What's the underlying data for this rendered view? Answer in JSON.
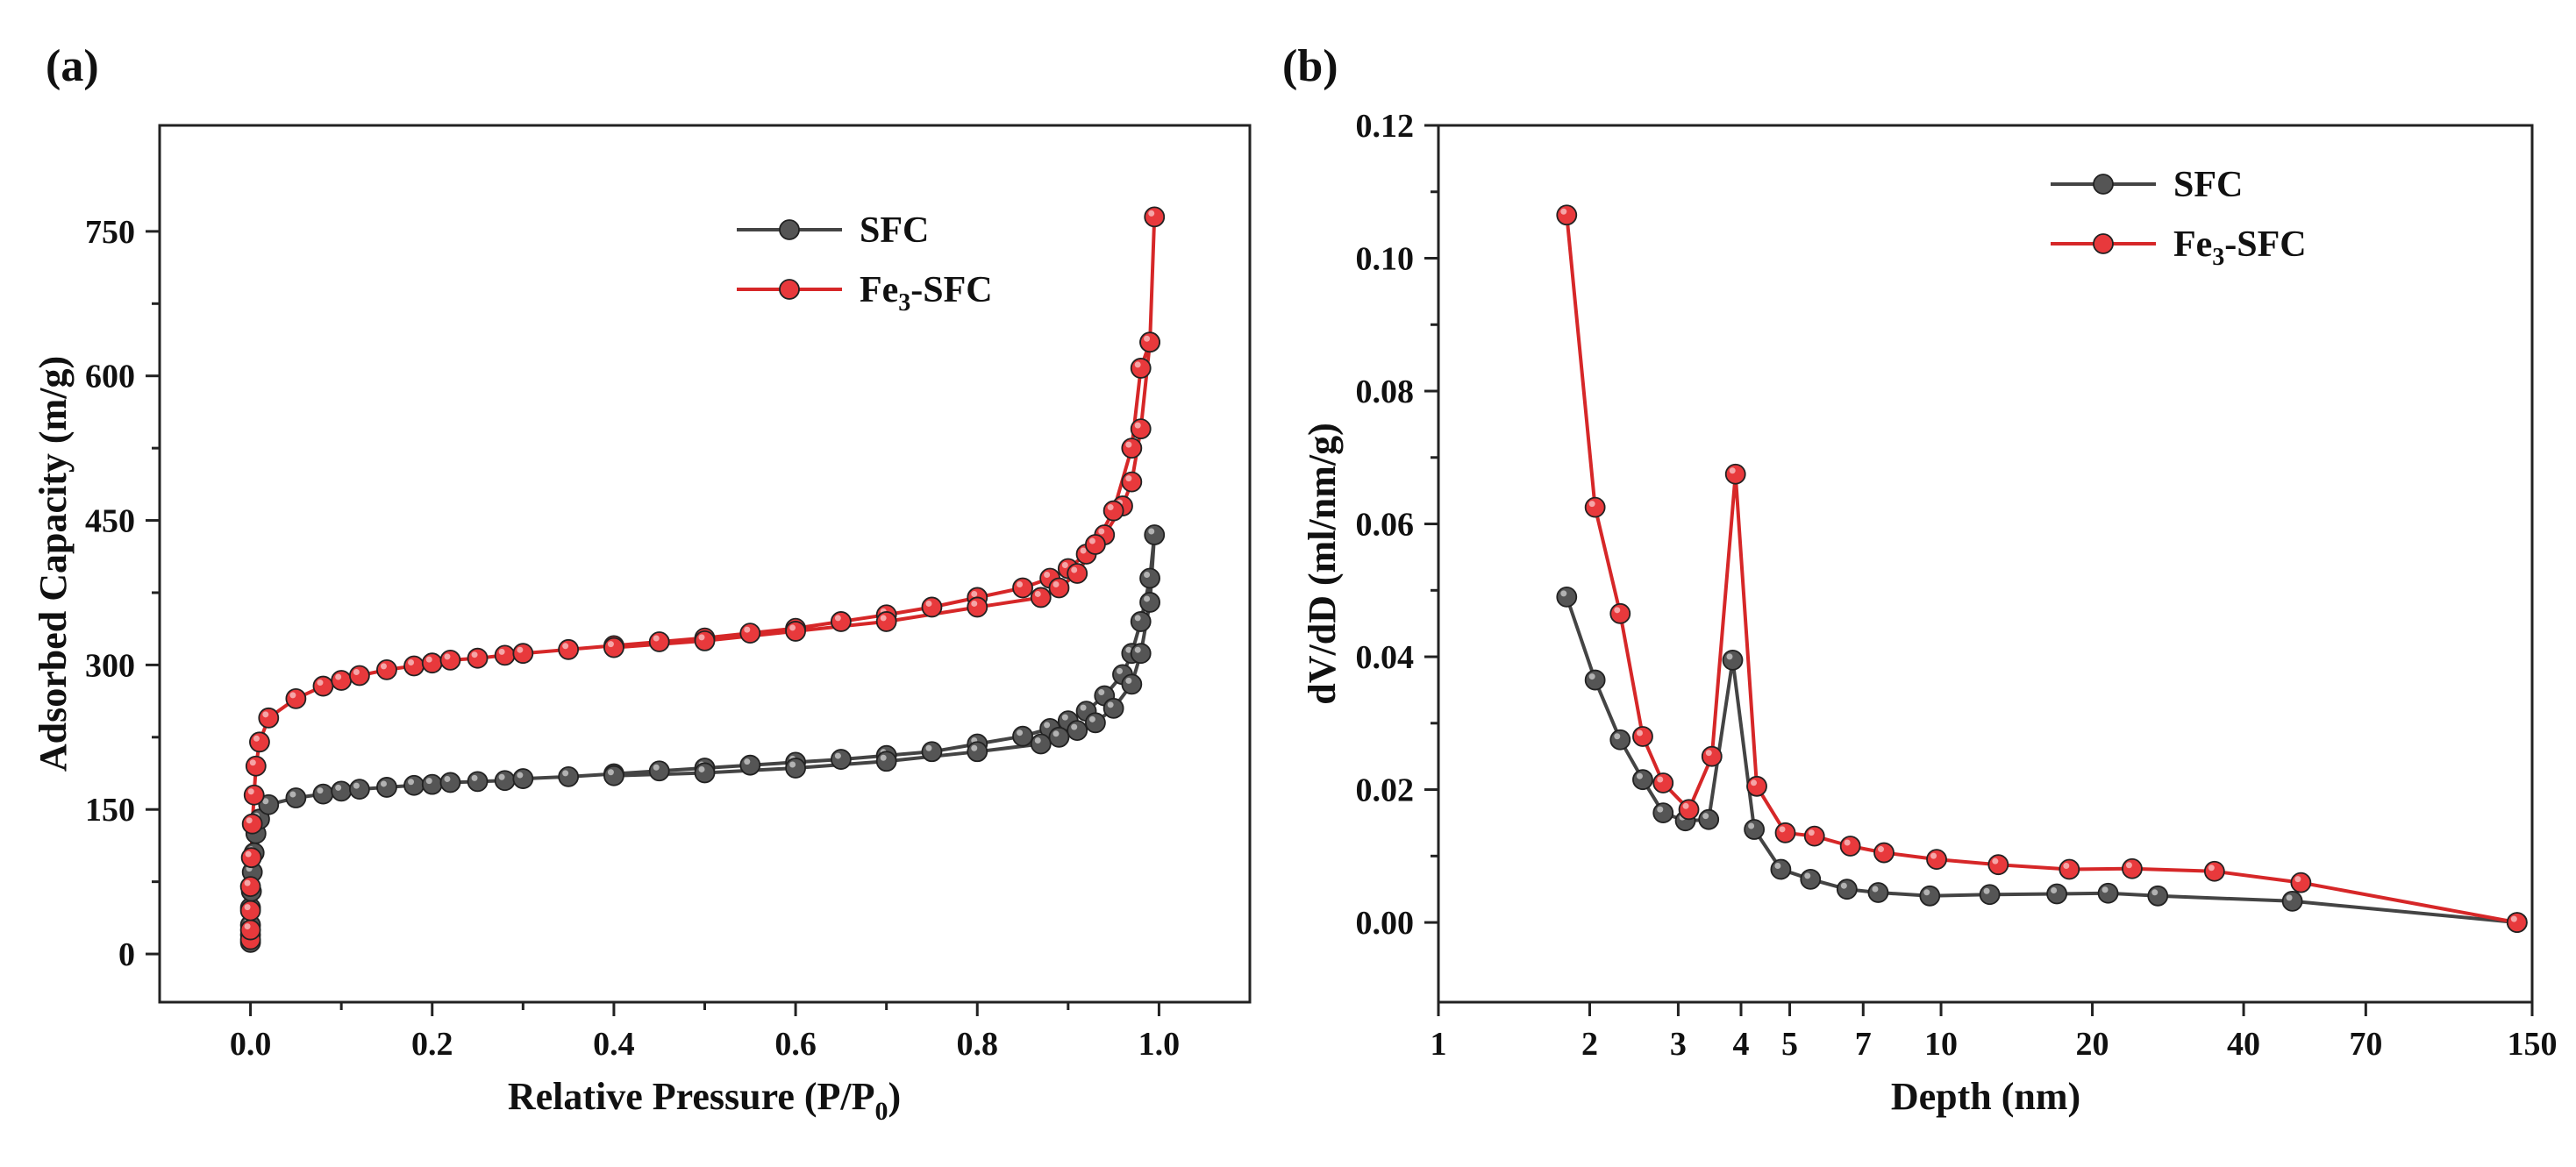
{
  "colors": {
    "sfc_line": "#444444",
    "sfc_marker": "#555555",
    "fe_line": "#d62728",
    "fe_marker": "#e8393c",
    "axis": "#222222",
    "background": "#ffffff"
  },
  "chart_data": [
    {
      "panel_label": "(a)",
      "type": "line",
      "xlabel": {
        "main": "Relative Pressure (P/P",
        "sub": "0",
        "end": ")"
      },
      "ylabel": "Adsorbed Capacity (m/g)",
      "xlim": [
        -0.1,
        1.1
      ],
      "ylim": [
        -50,
        860
      ],
      "xticks": [
        0.0,
        0.2,
        0.4,
        0.6,
        0.8,
        1.0
      ],
      "xtick_labels": [
        "0.0",
        "0.2",
        "0.4",
        "0.6",
        "0.8",
        "1.0"
      ],
      "yticks": [
        0,
        150,
        300,
        450,
        600,
        750
      ],
      "ytick_labels": [
        "0",
        "150",
        "300",
        "450",
        "600",
        "750"
      ],
      "legend": {
        "position": "top-right",
        "entries": [
          {
            "label": "SFC",
            "key": "sfc"
          },
          {
            "label": "Fe",
            "sub": "3",
            "suffix": "-SFC",
            "key": "fe"
          }
        ]
      },
      "series": [
        {
          "name": "SFC",
          "key": "sfc",
          "x": [
            0.0,
            0.0,
            0.0,
            0.0,
            0.001,
            0.002,
            0.004,
            0.006,
            0.01,
            0.02,
            0.05,
            0.08,
            0.1,
            0.12,
            0.15,
            0.18,
            0.2,
            0.22,
            0.25,
            0.28,
            0.3,
            0.35,
            0.4,
            0.45,
            0.5,
            0.55,
            0.6,
            0.65,
            0.7,
            0.75,
            0.8,
            0.85,
            0.88,
            0.9,
            0.92,
            0.94,
            0.96,
            0.97,
            0.98,
            0.99,
            0.995,
            0.99,
            0.98,
            0.97,
            0.95,
            0.93,
            0.91,
            0.89,
            0.87,
            0.8,
            0.7,
            0.6,
            0.5,
            0.4
          ],
          "y": [
            12,
            20,
            30,
            48,
            65,
            85,
            105,
            125,
            140,
            155,
            162,
            166,
            169,
            171,
            173,
            175,
            176,
            178,
            179,
            180,
            182,
            184,
            187,
            190,
            193,
            196,
            199,
            202,
            206,
            210,
            218,
            226,
            234,
            242,
            252,
            268,
            290,
            312,
            345,
            390,
            435,
            365,
            312,
            280,
            255,
            240,
            232,
            225,
            218,
            210,
            200,
            193,
            188,
            185
          ]
        },
        {
          "name": "Fe3-SFC",
          "key": "fe",
          "x": [
            0.0,
            0.0,
            0.0,
            0.0,
            0.001,
            0.002,
            0.004,
            0.006,
            0.01,
            0.02,
            0.05,
            0.08,
            0.1,
            0.12,
            0.15,
            0.18,
            0.2,
            0.22,
            0.25,
            0.28,
            0.3,
            0.35,
            0.4,
            0.45,
            0.5,
            0.55,
            0.6,
            0.65,
            0.7,
            0.75,
            0.8,
            0.85,
            0.88,
            0.9,
            0.92,
            0.94,
            0.96,
            0.97,
            0.98,
            0.99,
            0.995,
            0.99,
            0.98,
            0.97,
            0.95,
            0.93,
            0.91,
            0.89,
            0.87,
            0.8,
            0.7,
            0.6,
            0.5,
            0.4
          ],
          "y": [
            15,
            25,
            45,
            70,
            100,
            135,
            165,
            195,
            220,
            245,
            265,
            278,
            284,
            289,
            295,
            299,
            302,
            305,
            307,
            310,
            312,
            316,
            320,
            324,
            328,
            333,
            338,
            345,
            352,
            360,
            370,
            380,
            390,
            400,
            415,
            435,
            465,
            490,
            545,
            635,
            765,
            635,
            608,
            525,
            460,
            425,
            395,
            380,
            370,
            360,
            345,
            335,
            325,
            318
          ]
        }
      ]
    },
    {
      "panel_label": "(b)",
      "type": "line",
      "xscale": "log",
      "xlabel": "Depth (nm)",
      "ylabel": "dV/dD (ml/nm/g)",
      "xlim": [
        1,
        150
      ],
      "ylim": [
        -0.012,
        0.12
      ],
      "xticks": [
        1,
        2,
        3,
        4,
        5,
        7,
        10,
        20,
        40,
        70,
        150
      ],
      "xtick_labels": [
        "1",
        "2",
        "3",
        "4",
        "5",
        "7",
        "10",
        "20",
        "40",
        "70",
        "150"
      ],
      "yticks": [
        0.0,
        0.02,
        0.04,
        0.06,
        0.08,
        0.1,
        0.12
      ],
      "ytick_labels": [
        "0.00",
        "0.02",
        "0.04",
        "0.06",
        "0.08",
        "0.10",
        "0.12"
      ],
      "legend": {
        "position": "top-right",
        "entries": [
          {
            "label": "SFC",
            "key": "sfc"
          },
          {
            "label": "Fe",
            "sub": "3",
            "suffix": "-SFC",
            "key": "fe"
          }
        ]
      },
      "series": [
        {
          "name": "SFC",
          "key": "sfc",
          "x": [
            1.8,
            2.05,
            2.3,
            2.55,
            2.8,
            3.1,
            3.45,
            3.85,
            4.25,
            4.8,
            5.5,
            6.5,
            7.5,
            9.5,
            12.5,
            17,
            21.5,
            27,
            50,
            140
          ],
          "y": [
            0.049,
            0.0365,
            0.0275,
            0.0215,
            0.0165,
            0.0153,
            0.0155,
            0.0395,
            0.014,
            0.008,
            0.0065,
            0.005,
            0.0045,
            0.004,
            0.0042,
            0.0043,
            0.0044,
            0.004,
            0.0032,
            0.0
          ]
        },
        {
          "name": "Fe3-SFC",
          "key": "fe",
          "x": [
            1.8,
            2.05,
            2.3,
            2.55,
            2.8,
            3.15,
            3.5,
            3.9,
            4.3,
            4.9,
            5.6,
            6.6,
            7.7,
            9.8,
            13,
            18,
            24,
            35,
            52,
            140
          ],
          "y": [
            0.1065,
            0.0625,
            0.0465,
            0.028,
            0.021,
            0.017,
            0.025,
            0.0675,
            0.0205,
            0.0135,
            0.013,
            0.0115,
            0.0105,
            0.0095,
            0.0087,
            0.008,
            0.0081,
            0.0077,
            0.006,
            0.0
          ]
        }
      ]
    }
  ]
}
